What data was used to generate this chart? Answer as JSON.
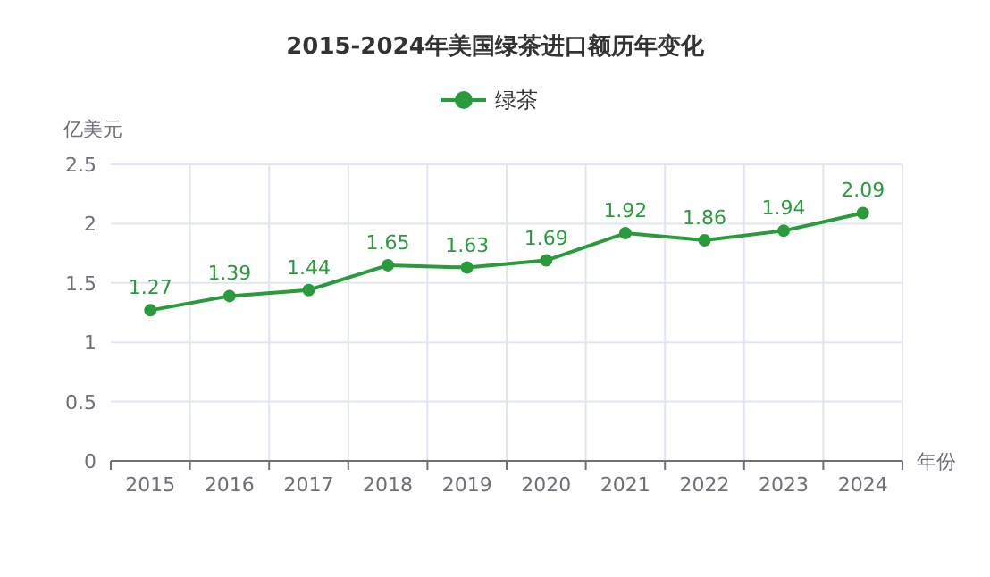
{
  "chart_data": {
    "type": "line",
    "title": "2015-2024年美国绿茶进口额历年变化",
    "xlabel": "年份",
    "ylabel": "亿美元",
    "categories": [
      "2015",
      "2016",
      "2017",
      "2018",
      "2019",
      "2020",
      "2021",
      "2022",
      "2023",
      "2024"
    ],
    "series": [
      {
        "name": "绿茶",
        "color": "#2a9b3c",
        "values": [
          1.27,
          1.39,
          1.44,
          1.65,
          1.63,
          1.69,
          1.92,
          1.86,
          1.94,
          2.09
        ]
      }
    ],
    "ylim": [
      0,
      2.5
    ],
    "yticks": [
      0,
      0.5,
      1,
      1.5,
      2,
      2.5
    ],
    "grid": true,
    "legend": "top",
    "marker": "circle",
    "line_style": "solid",
    "data_labels": true
  }
}
